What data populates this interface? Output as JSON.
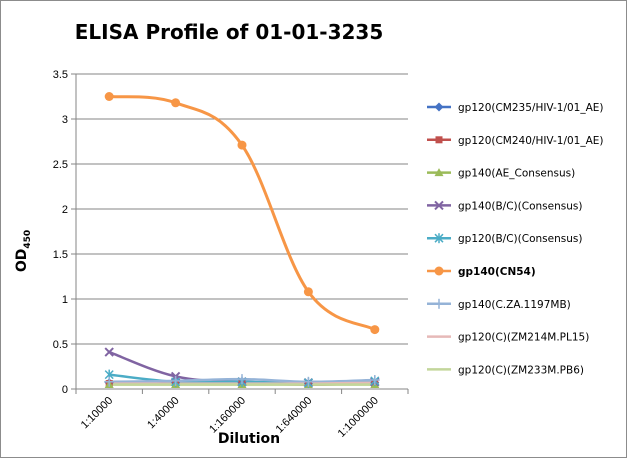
{
  "chart_data": {
    "type": "line",
    "title": "ELISA Profile of 01-01-3235",
    "xlabel": "Dilution",
    "ylabel": "OD",
    "ylabel_sub": "450",
    "categories": [
      "1:10000",
      "1:40000",
      "1:160000",
      "1:640000",
      "1:1000000"
    ],
    "ylim": [
      0,
      3.5
    ],
    "yticks": [
      "0",
      "0.5",
      "1",
      "1.5",
      "2",
      "2.5",
      "3",
      "3.5"
    ],
    "grid": true,
    "legend_position": "right",
    "series": [
      {
        "name": "gp120(CM235/HIV-1/01_AE)",
        "color": "#4472c4",
        "marker": "diamond",
        "bold": false,
        "values": [
          0.07,
          0.07,
          0.07,
          0.06,
          0.07
        ]
      },
      {
        "name": "gp120(CM240/HIV-1/01_AE)",
        "color": "#c0504d",
        "marker": "square",
        "bold": false,
        "values": [
          0.06,
          0.06,
          0.06,
          0.05,
          0.06
        ]
      },
      {
        "name": "gp140(AE_Consensus)",
        "color": "#9bbb59",
        "marker": "triangle",
        "bold": false,
        "values": [
          0.05,
          0.05,
          0.05,
          0.05,
          0.05
        ]
      },
      {
        "name": "gp140(B/C)(Consensus)",
        "color": "#8064a2",
        "marker": "x",
        "bold": false,
        "values": [
          0.41,
          0.14,
          0.08,
          0.07,
          0.08
        ]
      },
      {
        "name": "gp120(B/C)(Consensus)",
        "color": "#4bacc6",
        "marker": "star",
        "bold": false,
        "values": [
          0.16,
          0.08,
          0.08,
          0.07,
          0.09
        ]
      },
      {
        "name": "gp140(CN54)",
        "color": "#f79646",
        "marker": "circle",
        "bold": true,
        "values": [
          3.25,
          3.18,
          2.71,
          1.08,
          0.66
        ]
      },
      {
        "name": "gp140(C.ZA.1197MB)",
        "color": "#95b3d7",
        "marker": "plus",
        "bold": false,
        "values": [
          0.08,
          0.09,
          0.11,
          0.08,
          0.1
        ]
      },
      {
        "name": "gp120(C)(ZM214M.PL15)",
        "color": "#e6b9b8",
        "marker": "line",
        "bold": false,
        "values": [
          0.06,
          0.06,
          0.06,
          0.06,
          0.07
        ]
      },
      {
        "name": "gp120(C)(ZM233M.PB6)",
        "color": "#c3d69b",
        "marker": "line",
        "bold": false,
        "values": [
          0.05,
          0.05,
          0.05,
          0.05,
          0.05
        ]
      }
    ]
  }
}
